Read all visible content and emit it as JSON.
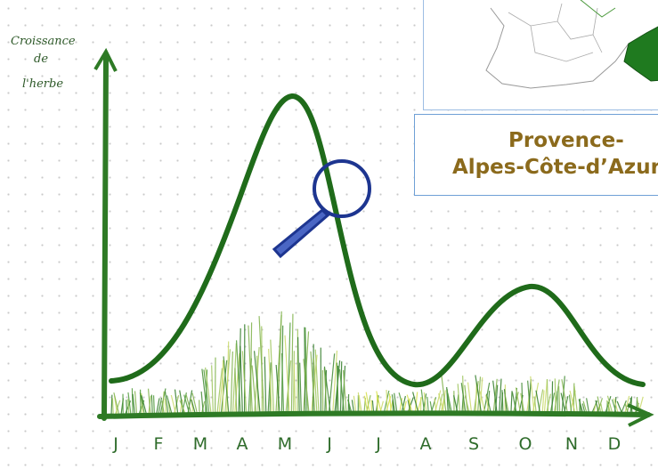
{
  "axis_label": [
    "Croissance",
    "de",
    "l'herbe"
  ],
  "months": [
    "J",
    "F",
    "M",
    "A",
    "M",
    "J",
    "J",
    "A",
    "S",
    "O",
    "N",
    "D"
  ],
  "region_label": [
    "Provence-",
    "Alpes-Côte-d’Azur"
  ]
}
